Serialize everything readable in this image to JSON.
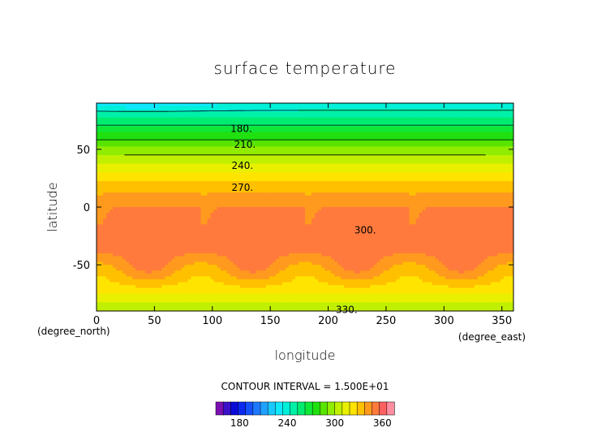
{
  "chart_data": {
    "type": "heatmap",
    "title": "surface temperature",
    "xlabel": "longitude",
    "ylabel": "latitude",
    "x_unit": "(degree_east)",
    "y_unit": "(degree_north)",
    "xlim": [
      0,
      360
    ],
    "ylim": [
      -90,
      90
    ],
    "x_ticks": [
      0,
      50,
      100,
      150,
      200,
      250,
      300,
      350
    ],
    "y_ticks": [
      50,
      0,
      -50
    ],
    "contour_interval_text": "CONTOUR INTERVAL = 1.500E+01",
    "contour_labels": [
      {
        "text": "180.",
        "lon": 125,
        "lat": 68
      },
      {
        "text": "210.",
        "lon": 128,
        "lat": 54
      },
      {
        "text": "240.",
        "lon": 126,
        "lat": 36
      },
      {
        "text": "270.",
        "lon": 126,
        "lat": 17
      },
      {
        "text": "300.",
        "lon": 232,
        "lat": -20
      },
      {
        "text": "330.",
        "lon": 216,
        "lat": -89
      }
    ],
    "colorbar": {
      "tick_labels": [
        "180",
        "240",
        "300",
        "360"
      ],
      "tick_values": [
        180,
        240,
        300,
        360
      ],
      "range": [
        150,
        375
      ],
      "bin_width": 7.5
    },
    "colors": {
      "cold_extreme": "#8a1ab8",
      "warm_extreme": "#e03030"
    }
  }
}
